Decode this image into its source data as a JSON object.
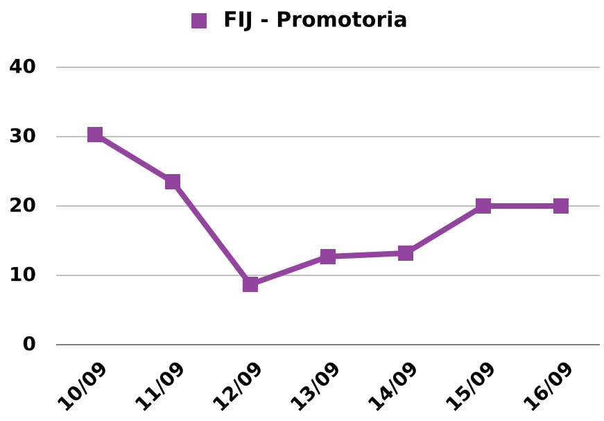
{
  "chart_data": {
    "type": "line",
    "categories": [
      "10/09",
      "11/09",
      "12/09",
      "13/09",
      "14/09",
      "15/09",
      "16/09"
    ],
    "series": [
      {
        "name": "FIJ - Promotoria",
        "color": "#93449e",
        "values": [
          30.3,
          23.5,
          8.7,
          12.7,
          13.2,
          20,
          20
        ]
      }
    ],
    "ylim": [
      0,
      40
    ],
    "yticks": [
      0,
      10,
      20,
      30,
      40
    ],
    "grid": true,
    "legend": "top"
  }
}
